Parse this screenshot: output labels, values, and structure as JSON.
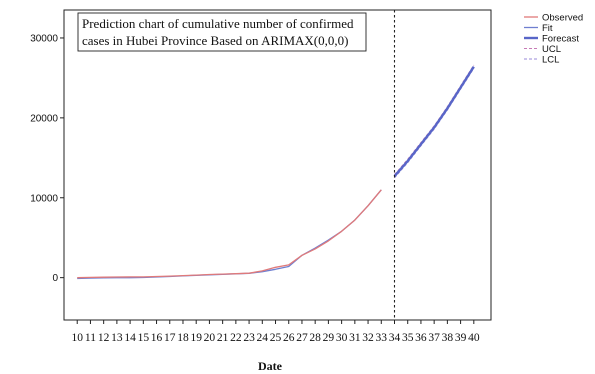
{
  "chart_data": {
    "type": "line",
    "title_lines": [
      "Prediction chart of cumulative number of confirmed",
      "cases in Hubei Province Based on ARIMAX(0,0,0)"
    ],
    "xlabel": "Date",
    "ylabel": "",
    "x_ticks": [
      10,
      11,
      12,
      13,
      14,
      15,
      16,
      17,
      18,
      19,
      20,
      21,
      22,
      23,
      24,
      25,
      26,
      27,
      28,
      29,
      30,
      31,
      32,
      33,
      34,
      35,
      36,
      37,
      38,
      39,
      40
    ],
    "y_ticks": [
      0,
      10000,
      20000,
      30000
    ],
    "xlim": [
      9,
      41.3
    ],
    "ylim": [
      -5300,
      33500
    ],
    "forecast_origin": 34,
    "grid": false,
    "legend_position": "right-outside-top",
    "series": [
      {
        "name": "Observed",
        "color": "#e07a7a",
        "style": "solid",
        "x": [
          10,
          11,
          12,
          13,
          14,
          15,
          16,
          17,
          18,
          19,
          20,
          21,
          22,
          23,
          24,
          25,
          26,
          27,
          28,
          29,
          30,
          31,
          32,
          33
        ],
        "values": [
          0,
          30,
          60,
          80,
          90,
          100,
          140,
          200,
          260,
          320,
          400,
          450,
          500,
          560,
          850,
          1300,
          1600,
          2800,
          3600,
          4600,
          5800,
          7200,
          9000,
          11000
        ]
      },
      {
        "name": "Fit",
        "color": "#6f7fd0",
        "style": "solid",
        "x": [
          10,
          11,
          12,
          13,
          14,
          15,
          16,
          17,
          18,
          19,
          20,
          21,
          22,
          23,
          24,
          25,
          26,
          27,
          28,
          29,
          30,
          31,
          32,
          33
        ],
        "values": [
          -100,
          -60,
          -30,
          -10,
          0,
          20,
          80,
          150,
          220,
          290,
          360,
          420,
          480,
          540,
          750,
          1050,
          1400,
          2800,
          3700,
          4700,
          5800,
          7200,
          9000,
          11000
        ]
      },
      {
        "name": "Forecast",
        "color": "#5866c8",
        "style": "solid-thick",
        "x": [
          34,
          35,
          36,
          37,
          38,
          39,
          40
        ],
        "values": [
          12700,
          14600,
          16700,
          18800,
          21200,
          23800,
          26400
        ]
      },
      {
        "name": "UCL",
        "color": "#c77ab6",
        "style": "dashed",
        "x": [
          34,
          35,
          36,
          37,
          38,
          39,
          40
        ],
        "values": [
          12900,
          14800,
          16900,
          19000,
          21400,
          24000,
          26600
        ]
      },
      {
        "name": "LCL",
        "color": "#9a8ad8",
        "style": "dashed",
        "x": [
          34,
          35,
          36,
          37,
          38,
          39,
          40
        ],
        "values": [
          12500,
          14400,
          16500,
          18600,
          21000,
          23600,
          26200
        ]
      }
    ]
  }
}
